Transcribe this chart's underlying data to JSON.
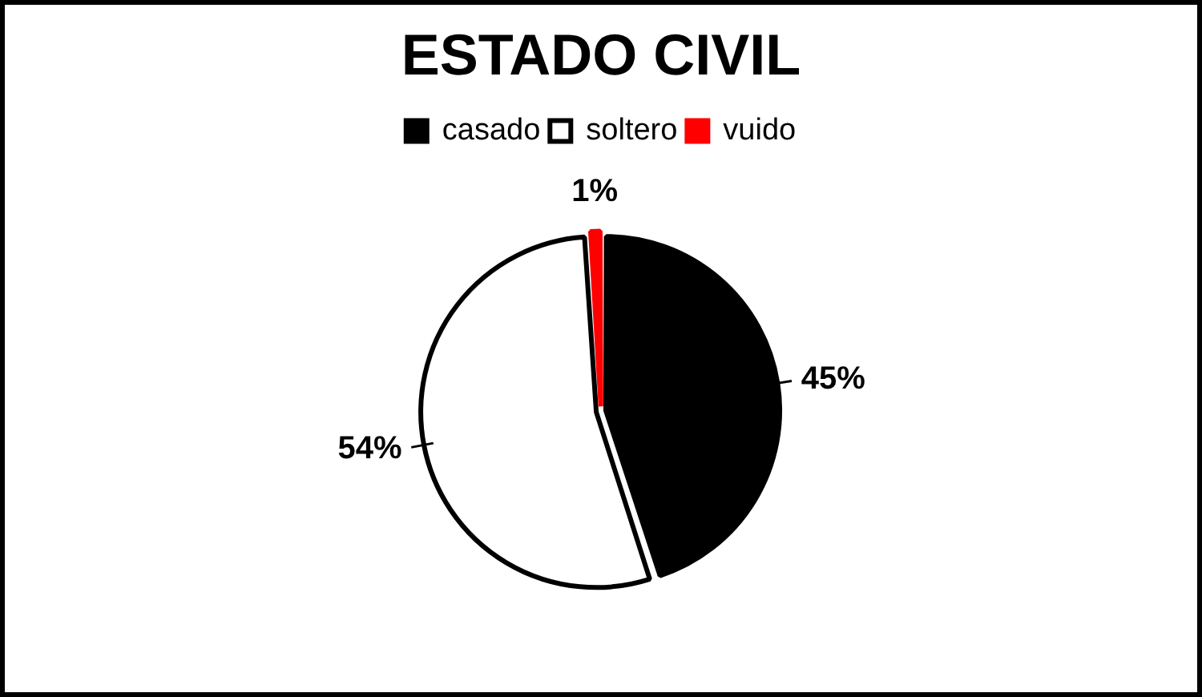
{
  "chart_data": {
    "type": "pie",
    "title": "ESTADO CIVIL",
    "categories": [
      "casado",
      "soltero",
      "vuido"
    ],
    "values": [
      45,
      54,
      1
    ],
    "colors": [
      "#000000",
      "#ffffff",
      "#ff0000"
    ],
    "value_labels": [
      "45%",
      "54%",
      "1%"
    ],
    "legend": "top"
  }
}
